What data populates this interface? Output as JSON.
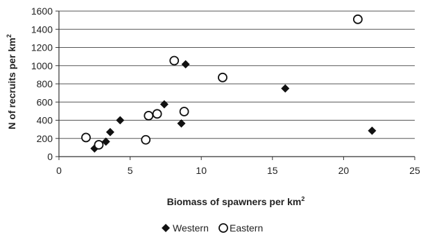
{
  "chart_data": {
    "type": "scatter",
    "xlabel": {
      "text": "Biomass of spawners per km",
      "sup": "2"
    },
    "ylabel": {
      "text": "N of recruits per km",
      "sup": "2"
    },
    "xlim": [
      0,
      25
    ],
    "ylim": [
      0,
      1600
    ],
    "xticks": [
      0,
      5,
      10,
      15,
      20,
      25
    ],
    "yticks": [
      0,
      200,
      400,
      600,
      800,
      1000,
      1200,
      1400,
      1600
    ],
    "grid": {
      "horizontal": true,
      "vertical": false
    },
    "legend_position": "bottom",
    "series": [
      {
        "name": "Western",
        "marker": "filled-diamond",
        "color": "#111111",
        "points": [
          {
            "x": 2.5,
            "y": 90
          },
          {
            "x": 3.3,
            "y": 165
          },
          {
            "x": 3.6,
            "y": 270
          },
          {
            "x": 4.3,
            "y": 400
          },
          {
            "x": 7.4,
            "y": 575
          },
          {
            "x": 8.6,
            "y": 365
          },
          {
            "x": 8.9,
            "y": 1015
          },
          {
            "x": 15.9,
            "y": 750
          },
          {
            "x": 22.0,
            "y": 285
          }
        ]
      },
      {
        "name": "Eastern",
        "marker": "open-circle",
        "color": "#111111",
        "points": [
          {
            "x": 1.9,
            "y": 210
          },
          {
            "x": 2.8,
            "y": 130
          },
          {
            "x": 6.1,
            "y": 185
          },
          {
            "x": 6.3,
            "y": 450
          },
          {
            "x": 6.9,
            "y": 470
          },
          {
            "x": 8.1,
            "y": 1055
          },
          {
            "x": 8.8,
            "y": 495
          },
          {
            "x": 11.5,
            "y": 870
          },
          {
            "x": 21.0,
            "y": 1510
          }
        ]
      }
    ]
  }
}
